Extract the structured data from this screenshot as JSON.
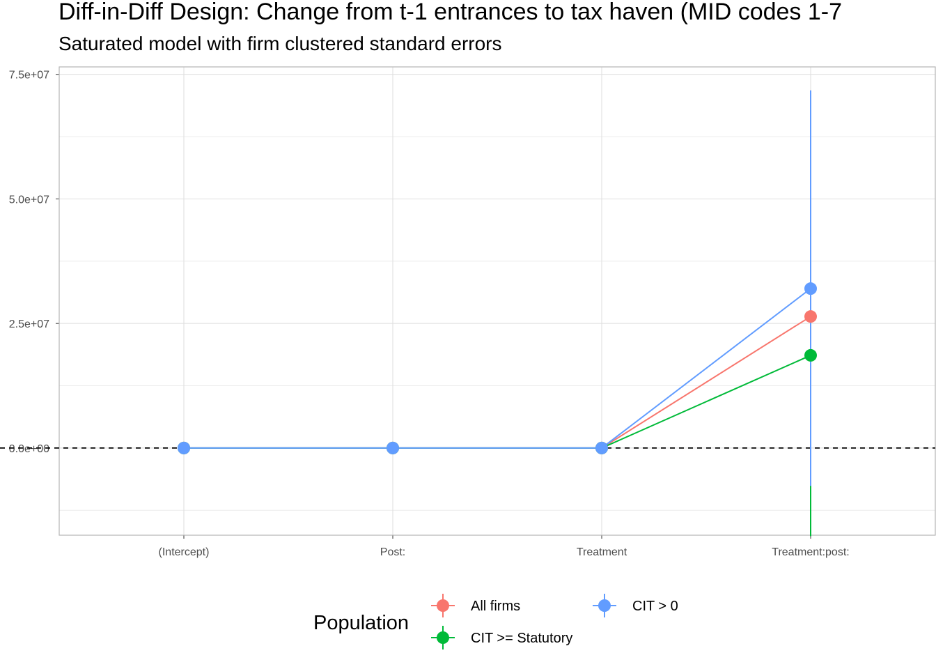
{
  "chart_data": {
    "type": "line",
    "title": "Diff-in-Diff Design: Change from t-1 entrances to tax haven (MID codes 1-7",
    "subtitle": "Saturated model with firm clustered standard errors",
    "xlabel": "",
    "ylabel": "",
    "categories": [
      "(Intercept)",
      "Post:",
      "Treatment",
      "Treatment:post:"
    ],
    "ylim": [
      -17500000,
      76500000
    ],
    "yticks": [
      0,
      25000000,
      50000000,
      75000000
    ],
    "ytick_labels": [
      "0.0e+00",
      "2.5e+07",
      "5.0e+07",
      "7.5e+07"
    ],
    "reference_line": 0,
    "grid": true,
    "legend": {
      "title": "Population",
      "position": "bottom"
    },
    "series": [
      {
        "name": "All firms",
        "color": "#F8766D",
        "values": [
          0,
          0,
          0,
          26400000
        ],
        "ci_low": [
          0,
          0,
          0,
          null
        ],
        "ci_high": [
          0,
          0,
          0,
          null
        ]
      },
      {
        "name": "CIT >= Statutory",
        "color": "#00BA38",
        "values": [
          0,
          0,
          0,
          18600000
        ],
        "ci_low": [
          0,
          0,
          0,
          -17700000
        ],
        "ci_high": [
          0,
          0,
          0,
          55000000
        ]
      },
      {
        "name": "CIT > 0",
        "color": "#619CFF",
        "values": [
          0,
          0,
          0,
          32000000
        ],
        "ci_low": [
          0,
          0,
          0,
          -7600000
        ],
        "ci_high": [
          0,
          0,
          0,
          71800000
        ]
      }
    ]
  }
}
